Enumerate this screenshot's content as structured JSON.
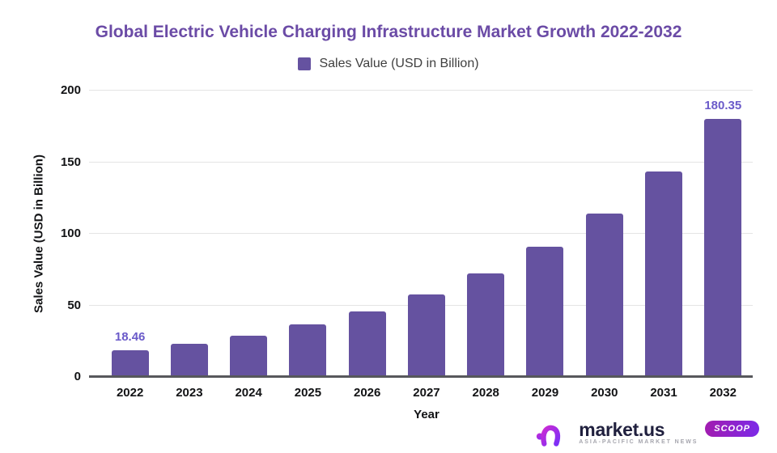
{
  "title": "Global Electric Vehicle Charging Infrastructure Market Growth 2022-2032",
  "legend": {
    "label": "Sales Value (USD in Billion)",
    "swatch_color": "#6552a0"
  },
  "chart_data": {
    "type": "bar",
    "title": "Global Electric Vehicle Charging Infrastructure Market Growth 2022-2032",
    "categories": [
      "2022",
      "2023",
      "2024",
      "2025",
      "2026",
      "2027",
      "2028",
      "2029",
      "2030",
      "2031",
      "2032"
    ],
    "values": [
      18.46,
      23.2,
      29.1,
      36.6,
      45.9,
      57.7,
      72.4,
      90.9,
      114.2,
      143.4,
      180.35
    ],
    "series_name": "Sales Value (USD in Billion)",
    "xlabel": "Year",
    "ylabel": "Sales Value (USD in Billion)",
    "ylim": [
      0,
      200
    ],
    "yticks": [
      0,
      50,
      100,
      150,
      200
    ],
    "grid": true,
    "legend_position": "top",
    "bar_color": "#6552a0",
    "data_label_color": "#6a5ac9",
    "data_labels": [
      {
        "index": 0,
        "text": "18.46"
      },
      {
        "index": 10,
        "text": "180.35"
      }
    ]
  },
  "footer": {
    "brand": "market.us",
    "tagline": "ASIA-PACIFIC MARKET NEWS",
    "badge": "SCOOP"
  }
}
